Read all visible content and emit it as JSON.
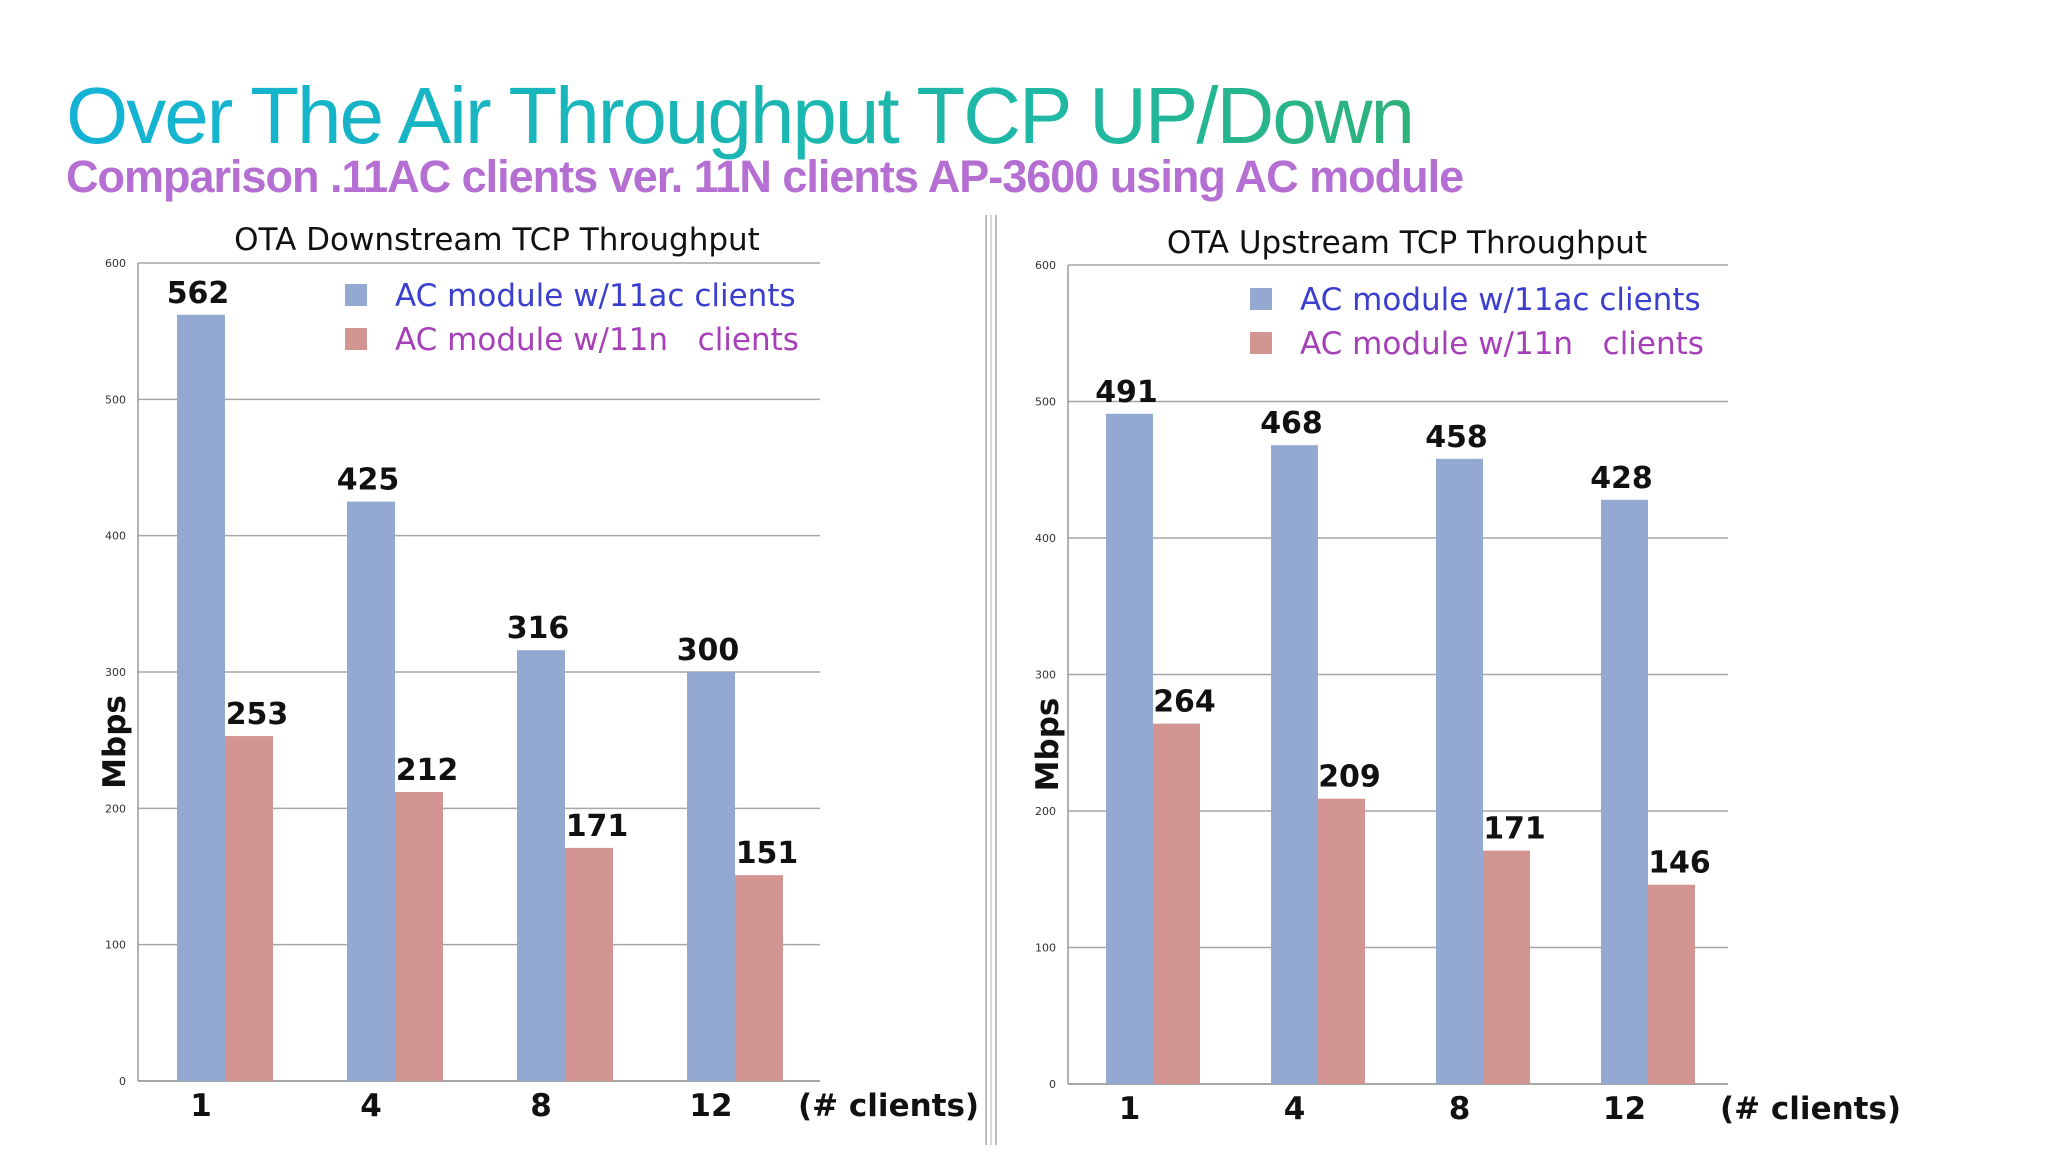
{
  "slide": {
    "title": "Over The Air Throughput TCP UP/Down",
    "subtitle": "Comparison .11AC clients ver. 11N clients AP-3600 using AC module"
  },
  "colors": {
    "series_ac": "#93a9d1",
    "series_n": "#d29592",
    "legend_ac_text": "#3b3fcf",
    "legend_n_text": "#a640b8",
    "gridline": "#a6a6a6"
  },
  "chart_data": [
    {
      "type": "bar",
      "title": "OTA Downstream TCP Throughput",
      "ylabel": "Mbps",
      "xlabel": "(# clients)",
      "categories": [
        "1",
        "4",
        "8",
        "12"
      ],
      "ylim": [
        0,
        600
      ],
      "yticks": [
        0,
        100,
        200,
        300,
        400,
        500,
        600
      ],
      "grid": true,
      "legend_position": "top-right",
      "series": [
        {
          "name": "AC module w/11ac clients",
          "values": [
            562,
            425,
            316,
            300
          ]
        },
        {
          "name": "AC module w/11n   clients",
          "values": [
            253,
            212,
            171,
            151
          ]
        }
      ]
    },
    {
      "type": "bar",
      "title": "OTA Upstream TCP Throughput",
      "ylabel": "Mbps",
      "xlabel": "(# clients)",
      "categories": [
        "1",
        "4",
        "8",
        "12"
      ],
      "ylim": [
        0,
        600
      ],
      "yticks": [
        0,
        100,
        200,
        300,
        400,
        500,
        600
      ],
      "grid": true,
      "legend_position": "top-right",
      "series": [
        {
          "name": "AC module w/11ac clients",
          "values": [
            491,
            468,
            458,
            428
          ]
        },
        {
          "name": "AC module w/11n   clients",
          "values": [
            264,
            209,
            171,
            146
          ]
        }
      ]
    }
  ]
}
